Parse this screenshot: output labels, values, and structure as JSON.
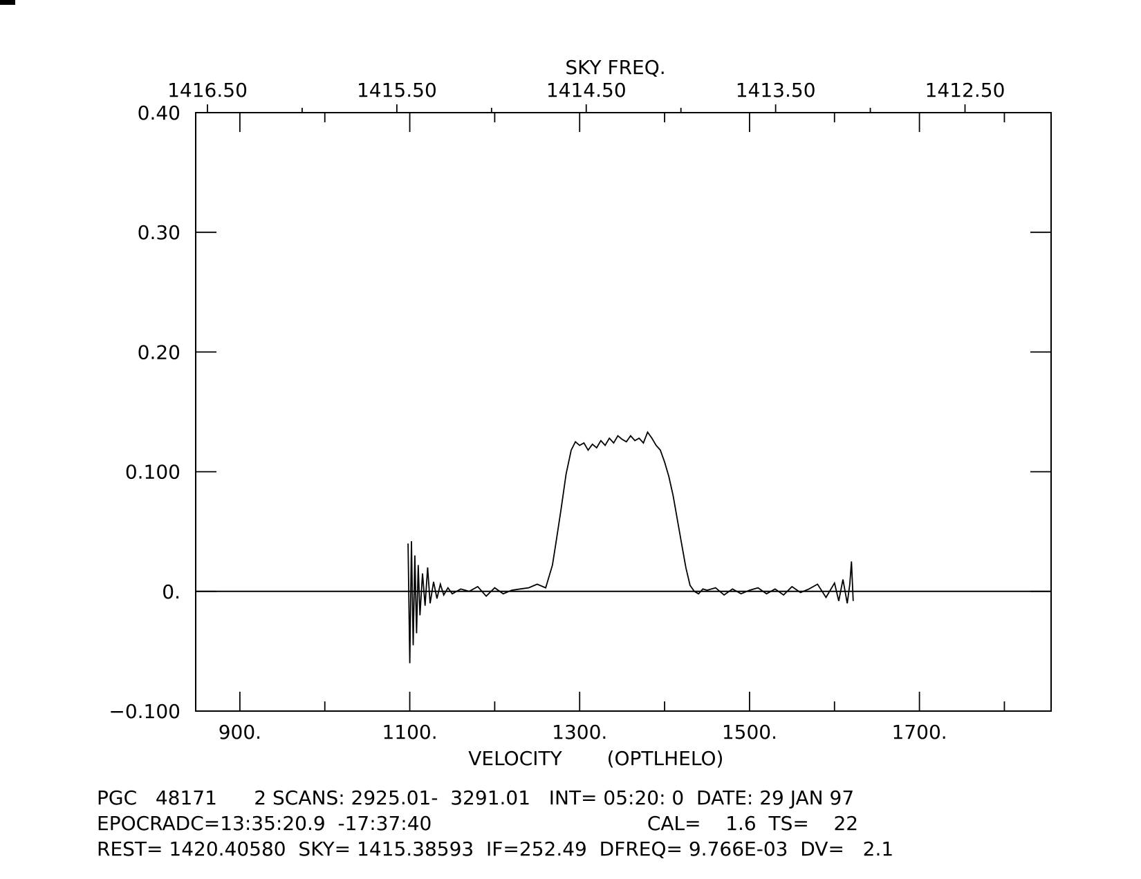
{
  "chart_data": {
    "type": "line",
    "top_axis_title": "SKY FREQ.",
    "top_tick_labels": [
      "1416.50",
      "1415.50",
      "1414.50",
      "1413.50",
      "1412.50"
    ],
    "top_ticks_mhz": [
      1416.5,
      1415.5,
      1414.5,
      1413.5,
      1412.5
    ],
    "xlabel": "VELOCITY",
    "xlabel_frame": "(OPTLHELO)",
    "x_tick_labels": [
      "900.",
      "1100.",
      "1300.",
      "1500.",
      "1700."
    ],
    "x_ticks": [
      900,
      1100,
      1300,
      1500,
      1700
    ],
    "y_tick_labels": [
      "0.40",
      "0.30",
      "0.20",
      "0.100",
      "0.",
      "-0.100"
    ],
    "y_ticks": [
      0.4,
      0.3,
      0.2,
      0.1,
      0.0,
      -0.1
    ],
    "xlim": [
      848,
      1855
    ],
    "ylim": [
      -0.1,
      0.4
    ],
    "zero_line": true,
    "series": [
      {
        "x": [
          1098,
          1100,
          1102,
          1104,
          1106,
          1108,
          1110,
          1112,
          1115,
          1118,
          1121,
          1124,
          1128,
          1132,
          1136,
          1140,
          1145,
          1150,
          1160,
          1170,
          1180,
          1190,
          1200,
          1210,
          1220,
          1230,
          1240,
          1250,
          1260,
          1268,
          1272,
          1278,
          1284,
          1290,
          1295,
          1300,
          1305,
          1310,
          1315,
          1320,
          1325,
          1330,
          1335,
          1340,
          1345,
          1350,
          1355,
          1360,
          1365,
          1370,
          1375,
          1380,
          1385,
          1390,
          1395,
          1400,
          1405,
          1410,
          1415,
          1420,
          1425,
          1430,
          1435,
          1440,
          1445,
          1450,
          1460,
          1470,
          1480,
          1490,
          1500,
          1510,
          1520,
          1530,
          1540,
          1550,
          1560,
          1570,
          1580,
          1590,
          1600,
          1605,
          1610,
          1615,
          1618,
          1620,
          1622
        ],
        "y": [
          0.04,
          -0.06,
          0.042,
          -0.045,
          0.03,
          -0.035,
          0.022,
          -0.02,
          0.015,
          -0.012,
          0.02,
          -0.01,
          0.008,
          -0.006,
          0.006,
          -0.003,
          0.003,
          -0.002,
          0.002,
          0.0,
          0.004,
          -0.004,
          0.003,
          -0.002,
          0.001,
          0.002,
          0.003,
          0.006,
          0.003,
          0.022,
          0.04,
          0.068,
          0.098,
          0.118,
          0.125,
          0.122,
          0.124,
          0.118,
          0.123,
          0.12,
          0.126,
          0.122,
          0.128,
          0.124,
          0.13,
          0.127,
          0.125,
          0.13,
          0.126,
          0.128,
          0.124,
          0.133,
          0.128,
          0.122,
          0.118,
          0.108,
          0.096,
          0.08,
          0.06,
          0.04,
          0.02,
          0.005,
          0.0,
          -0.002,
          0.002,
          0.001,
          0.003,
          -0.003,
          0.002,
          -0.002,
          0.001,
          0.003,
          -0.002,
          0.002,
          -0.003,
          0.004,
          -0.001,
          0.002,
          0.006,
          -0.005,
          0.007,
          -0.008,
          0.01,
          -0.01,
          0.006,
          0.025,
          -0.008
        ]
      }
    ]
  },
  "footer": {
    "line1": "PGC   48171      2 SCANS: 2925.01-  3291.01   INT= 05:20: 0  DATE: 29 JAN 97",
    "line2": "EPOCRADC=13:35:20.9  -17:37:40                                   CAL=    1.6  TS=    22",
    "line3": "REST= 1420.40580  SKY= 1415.38593  IF=252.49  DFREQ= 9.766E-03  DV=   2.1"
  }
}
